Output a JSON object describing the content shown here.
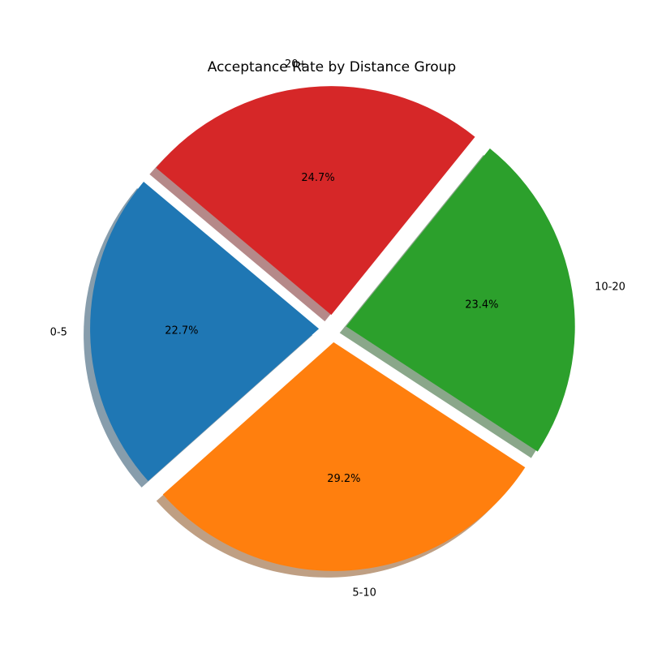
{
  "chart_data": {
    "type": "pie",
    "title": "Acceptance Rate by Distance Group",
    "categories": [
      "0-5",
      "5-10",
      "10-20",
      "20+"
    ],
    "values": [
      22.7,
      29.2,
      23.4,
      24.7
    ],
    "value_labels": [
      "22.7%",
      "29.2%",
      "23.4%",
      "24.7%"
    ],
    "colors": [
      "#1f77b4",
      "#ff7f0e",
      "#2ca02c",
      "#d62728"
    ],
    "start_angle_deg": 140,
    "direction": "counterclockwise",
    "exploded": true,
    "shadow": true,
    "legend": "none"
  }
}
